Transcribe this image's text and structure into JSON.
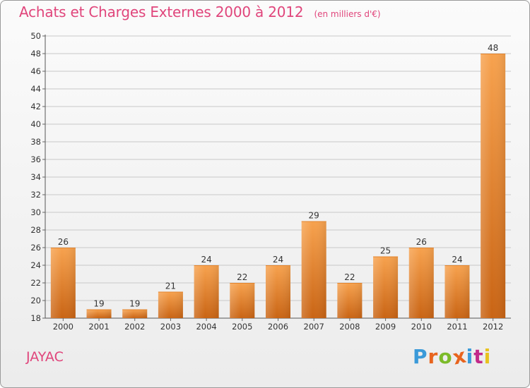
{
  "header": {
    "title": "Achats et Charges Externes 2000 à 2012",
    "unit": "(en milliers d'€)"
  },
  "footer": {
    "commune": "JAYAC",
    "logo_text": "Proxiti",
    "logo_colors": [
      "#3a9ad9",
      "#e8641e",
      "#7cbb2a",
      "#e8641e",
      "#3a9ad9",
      "#c22a8a",
      "#e8c21e"
    ]
  },
  "colors": {
    "accent": "#e0457b",
    "bar_light": "#f7a24e",
    "bar_dark": "#c96414"
  },
  "chart_data": {
    "type": "bar",
    "categories": [
      "2000",
      "2001",
      "2002",
      "2003",
      "2004",
      "2005",
      "2006",
      "2007",
      "2008",
      "2009",
      "2010",
      "2011",
      "2012"
    ],
    "values": [
      26,
      19,
      19,
      21,
      24,
      22,
      24,
      29,
      22,
      25,
      26,
      24,
      48
    ],
    "title": "Achats et Charges Externes 2000 à 2012",
    "xlabel": "",
    "ylabel": "",
    "ylim": [
      18,
      50
    ],
    "yticks": [
      18,
      20,
      22,
      24,
      26,
      28,
      30,
      32,
      34,
      36,
      38,
      40,
      42,
      44,
      46,
      48,
      50
    ],
    "grid": true,
    "legend": "none"
  }
}
